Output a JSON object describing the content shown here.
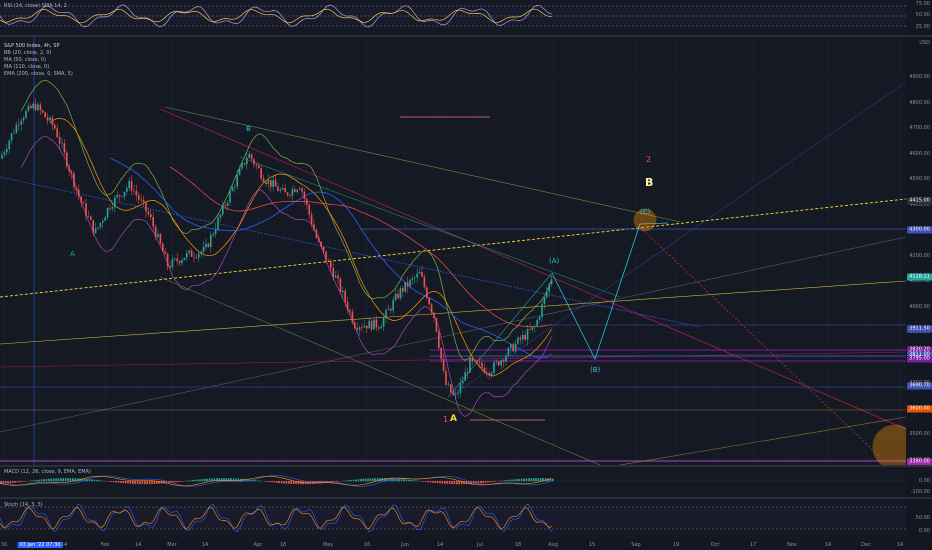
{
  "rsi": {
    "label": "RSI (14, close) SMA 14, 2",
    "levels": [
      "75.00",
      "50.00",
      "25.00"
    ]
  },
  "main": {
    "title": "S&P 500 Index, 4h, SP",
    "indicators": [
      "BB (20, close, 2, 0)",
      "MA (50, close, 0)",
      "MA (110, close, 0)",
      "EMA (200, close, 0, SMA, 5)"
    ],
    "currency": "USD",
    "prices": [
      "4900.00",
      "4800.00",
      "4700.00",
      "4600.00",
      "4500.00",
      "4400.00",
      "4300.00",
      "4200.00",
      "4100.00",
      "4000.00",
      "3900.00",
      "3800.00",
      "3700.00",
      "3600.00",
      "3500.00",
      "3400.00"
    ],
    "badges": [
      {
        "text": "4415.00",
        "color": "#2a2e39"
      },
      {
        "text": "4300.00",
        "color": "#3f51b5"
      },
      {
        "text": "4118.11",
        "color": "#26a69a"
      },
      {
        "text": "3911.50",
        "color": "#3f51b5"
      },
      {
        "text": "3830.20",
        "color": "#7b1fa2"
      },
      {
        "text": "3811.00",
        "color": "#3f51b5"
      },
      {
        "text": "3795.00",
        "color": "#7b1fa2"
      },
      {
        "text": "3690.70",
        "color": "#3f51b5"
      },
      {
        "text": "3600.00",
        "color": "#e65100"
      },
      {
        "text": "3390.00",
        "color": "#9c27b0"
      }
    ],
    "annotations": {
      "wave_a_left": "A",
      "wave_b_top": "B",
      "wave_1": "1",
      "wave_a_bottom": "A",
      "wave_a_paren": "(A)",
      "wave_b_paren": "(B)",
      "wave_c_paren": "(C)",
      "wave_2": "2",
      "wave_b_big": "B"
    }
  },
  "macd": {
    "label": "MACD (12, 26, close, 9, EMA, EMA)",
    "levels": [
      "0.00",
      "-100.00"
    ]
  },
  "stoch": {
    "label": "Stoch (14, 3, 3)",
    "levels": [
      "50.00",
      "0.00"
    ]
  },
  "time_axis": {
    "labels": [
      "30",
      "03 Jan '22  07:30",
      "14",
      "Feb",
      "14",
      "Mar",
      "14",
      "Apr",
      "18",
      "May",
      "16",
      "Jun",
      "14",
      "Jul",
      "18",
      "Aug",
      "15",
      "Sep",
      "19",
      "Oct",
      "17",
      "Nov",
      "14",
      "Dec",
      "14"
    ]
  },
  "colors": {
    "up": "#26a69a",
    "down": "#ef5350",
    "bb": "#7cb342",
    "ma50": "#ff9800",
    "ma110": "#2962ff",
    "ema200": "#ff5252"
  }
}
